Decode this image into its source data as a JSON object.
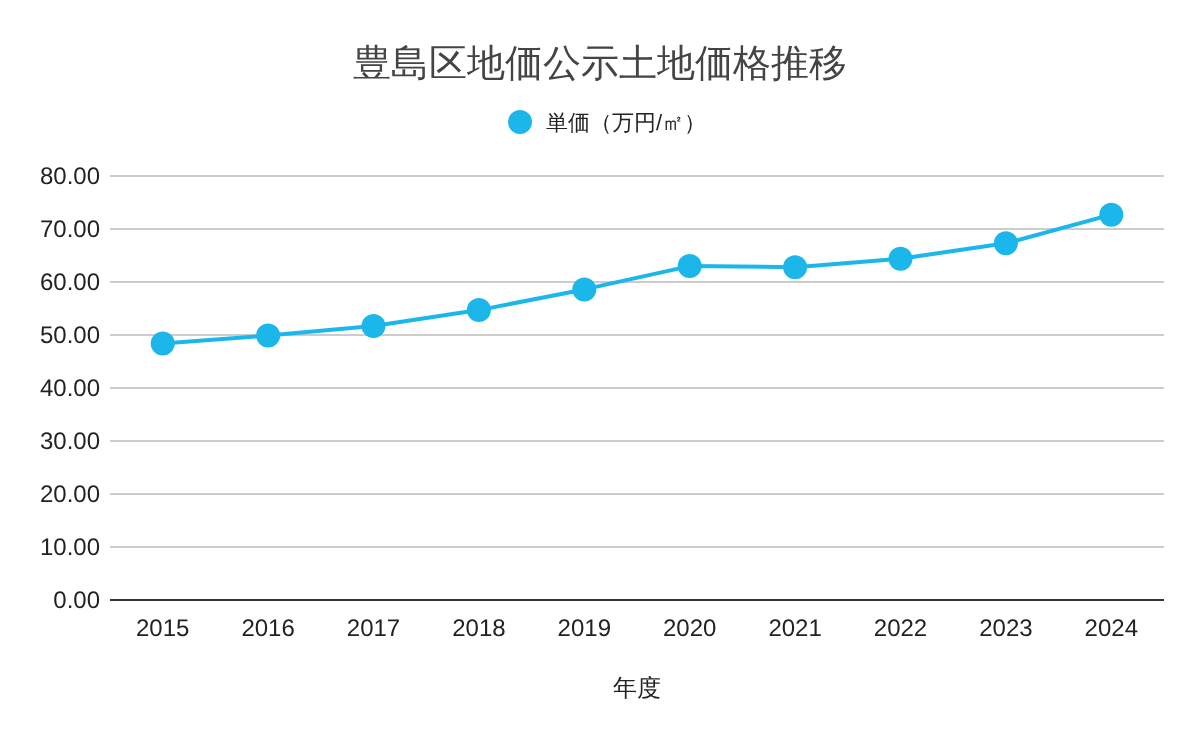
{
  "chart_data": {
    "type": "line",
    "title": "豊島区地価公示土地価格推移",
    "xlabel": "年度",
    "categories": [
      "2015",
      "2016",
      "2017",
      "2018",
      "2019",
      "2020",
      "2021",
      "2022",
      "2023",
      "2024"
    ],
    "series": [
      {
        "name": "単価（万円/㎡）",
        "color": "#1bb7ea",
        "values": [
          48.4,
          49.9,
          51.7,
          54.7,
          58.6,
          63.0,
          62.8,
          64.4,
          67.3,
          72.7
        ]
      }
    ],
    "ylim": [
      0,
      80
    ],
    "yticks": [
      {
        "value": 0,
        "label": "0.00"
      },
      {
        "value": 10,
        "label": "10.00"
      },
      {
        "value": 20,
        "label": "20.00"
      },
      {
        "value": 30,
        "label": "30.00"
      },
      {
        "value": 40,
        "label": "40.00"
      },
      {
        "value": 50,
        "label": "50.00"
      },
      {
        "value": 60,
        "label": "60.00"
      },
      {
        "value": 70,
        "label": "70.00"
      },
      {
        "value": 80,
        "label": "80.00"
      }
    ],
    "grid": "y",
    "legend": "top",
    "marker": "circle",
    "line_style": "solid"
  }
}
